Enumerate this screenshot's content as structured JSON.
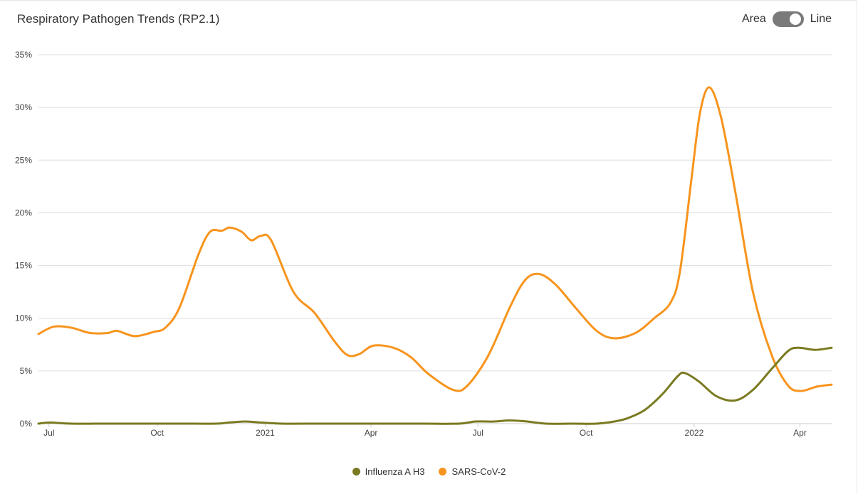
{
  "header": {
    "title": "Respiratory Pathogen Trends (RP2.1)",
    "toggle_left_label": "Area",
    "toggle_right_label": "Line"
  },
  "colors": {
    "influenza": "#7a7a22",
    "sars": "#f7941d",
    "grid": "#dddddd",
    "axis": "#cccccc"
  },
  "chart_data": {
    "type": "line",
    "title": "Respiratory Pathogen Trends (RP2.1)",
    "xlabel": "",
    "ylabel": "",
    "ylim": [
      0,
      35
    ],
    "xlim": [
      "2020-06-22",
      "2022-04-28"
    ],
    "y_ticks": [
      0,
      5,
      10,
      15,
      20,
      25,
      30,
      35
    ],
    "y_tick_labels": [
      "0%",
      "5%",
      "10%",
      "15%",
      "20%",
      "25%",
      "30%",
      "35%"
    ],
    "x_ticks": [
      {
        "date": "2020-07-01",
        "label": "Jul"
      },
      {
        "date": "2020-10-01",
        "label": "Oct"
      },
      {
        "date": "2021-01-01",
        "label": "2021"
      },
      {
        "date": "2021-04-01",
        "label": "Apr"
      },
      {
        "date": "2021-07-01",
        "label": "Jul"
      },
      {
        "date": "2021-10-01",
        "label": "Oct"
      },
      {
        "date": "2022-01-01",
        "label": "2022"
      },
      {
        "date": "2022-04-01",
        "label": "Apr"
      }
    ],
    "grid": true,
    "legend_position": "bottom-center",
    "series": [
      {
        "name": "Influenza A H3",
        "color": "#7a7a22",
        "points": [
          [
            "2020-06-22",
            0.0
          ],
          [
            "2020-07-02",
            0.1
          ],
          [
            "2020-07-20",
            0.0
          ],
          [
            "2020-08-20",
            0.0
          ],
          [
            "2020-09-20",
            0.0
          ],
          [
            "2020-10-20",
            0.0
          ],
          [
            "2020-11-20",
            0.0
          ],
          [
            "2020-12-01",
            0.1
          ],
          [
            "2020-12-15",
            0.2
          ],
          [
            "2020-12-29",
            0.1
          ],
          [
            "2021-01-15",
            0.0
          ],
          [
            "2021-02-15",
            0.0
          ],
          [
            "2021-03-15",
            0.0
          ],
          [
            "2021-04-15",
            0.0
          ],
          [
            "2021-05-15",
            0.0
          ],
          [
            "2021-06-15",
            0.0
          ],
          [
            "2021-06-29",
            0.2
          ],
          [
            "2021-07-15",
            0.2
          ],
          [
            "2021-07-28",
            0.3
          ],
          [
            "2021-08-12",
            0.2
          ],
          [
            "2021-08-28",
            0.0
          ],
          [
            "2021-09-20",
            0.0
          ],
          [
            "2021-10-10",
            0.0
          ],
          [
            "2021-10-25",
            0.2
          ],
          [
            "2021-11-05",
            0.5
          ],
          [
            "2021-11-20",
            1.3
          ],
          [
            "2021-12-05",
            2.8
          ],
          [
            "2021-12-18",
            4.5
          ],
          [
            "2021-12-24",
            4.8
          ],
          [
            "2022-01-05",
            4.0
          ],
          [
            "2022-01-20",
            2.6
          ],
          [
            "2022-02-05",
            2.2
          ],
          [
            "2022-02-20",
            3.2
          ],
          [
            "2022-03-08",
            5.2
          ],
          [
            "2022-03-22",
            6.9
          ],
          [
            "2022-03-31",
            7.2
          ],
          [
            "2022-04-14",
            7.0
          ],
          [
            "2022-04-28",
            7.2
          ]
        ]
      },
      {
        "name": "SARS-CoV-2",
        "color": "#f7941d",
        "points": [
          [
            "2020-06-22",
            8.5
          ],
          [
            "2020-07-05",
            9.2
          ],
          [
            "2020-07-20",
            9.1
          ],
          [
            "2020-08-05",
            8.6
          ],
          [
            "2020-08-20",
            8.6
          ],
          [
            "2020-08-28",
            8.8
          ],
          [
            "2020-09-12",
            8.3
          ],
          [
            "2020-09-28",
            8.7
          ],
          [
            "2020-10-08",
            9.1
          ],
          [
            "2020-10-20",
            11.0
          ],
          [
            "2020-11-05",
            16.0
          ],
          [
            "2020-11-15",
            18.2
          ],
          [
            "2020-11-25",
            18.3
          ],
          [
            "2020-12-02",
            18.6
          ],
          [
            "2020-12-12",
            18.2
          ],
          [
            "2020-12-20",
            17.4
          ],
          [
            "2020-12-28",
            17.8
          ],
          [
            "2021-01-06",
            17.4
          ],
          [
            "2021-01-25",
            12.5
          ],
          [
            "2021-02-12",
            10.5
          ],
          [
            "2021-03-01",
            7.8
          ],
          [
            "2021-03-12",
            6.5
          ],
          [
            "2021-03-22",
            6.6
          ],
          [
            "2021-04-03",
            7.4
          ],
          [
            "2021-04-20",
            7.2
          ],
          [
            "2021-05-05",
            6.3
          ],
          [
            "2021-05-20",
            4.7
          ],
          [
            "2021-06-10",
            3.2
          ],
          [
            "2021-06-22",
            3.6
          ],
          [
            "2021-07-10",
            6.5
          ],
          [
            "2021-07-28",
            11.0
          ],
          [
            "2021-08-10",
            13.6
          ],
          [
            "2021-08-22",
            14.2
          ],
          [
            "2021-09-05",
            13.2
          ],
          [
            "2021-09-22",
            11.0
          ],
          [
            "2021-10-10",
            8.8
          ],
          [
            "2021-10-25",
            8.1
          ],
          [
            "2021-11-12",
            8.6
          ],
          [
            "2021-11-28",
            10.0
          ],
          [
            "2021-12-12",
            11.5
          ],
          [
            "2021-12-20",
            14.5
          ],
          [
            "2021-12-30",
            23.5
          ],
          [
            "2022-01-06",
            29.5
          ],
          [
            "2022-01-14",
            31.9
          ],
          [
            "2022-01-24",
            29.0
          ],
          [
            "2022-02-05",
            22.0
          ],
          [
            "2022-02-20",
            12.5
          ],
          [
            "2022-03-08",
            6.5
          ],
          [
            "2022-03-22",
            3.6
          ],
          [
            "2022-04-02",
            3.1
          ],
          [
            "2022-04-15",
            3.5
          ],
          [
            "2022-04-28",
            3.7
          ]
        ]
      }
    ]
  }
}
